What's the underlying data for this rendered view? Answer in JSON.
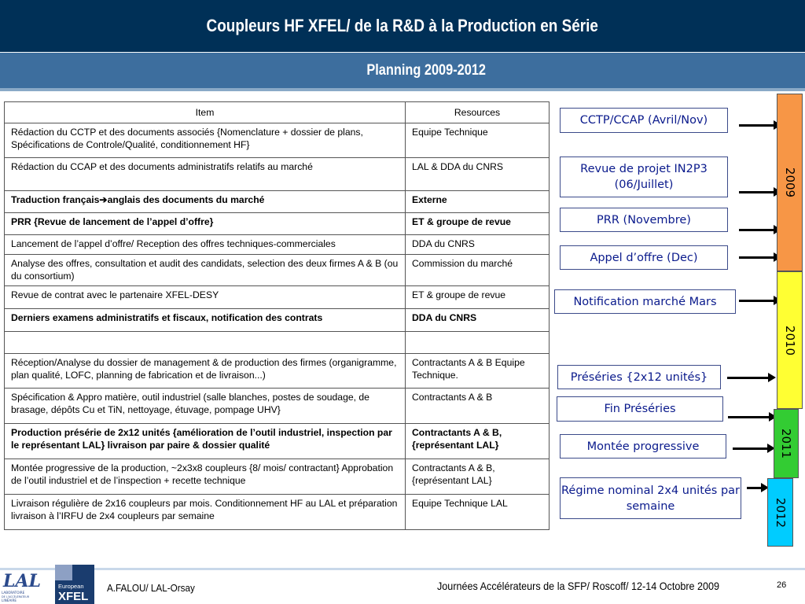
{
  "header": {
    "title": "Coupleurs HF XFEL/ de la R&D à la Production en Série",
    "subtitle": "Planning 2009-2012"
  },
  "table": {
    "headers": [
      "Item",
      "Resources"
    ],
    "rows": [
      {
        "item": "Rédaction du CCTP et des documents associés {Nomenclature + dossier de plans, Spécifications de Controle/Qualité, conditionnement HF}",
        "resources": "Equipe Technique",
        "bold": false
      },
      {
        "item": "Rédaction du CCAP et des documents administratifs relatifs au marché",
        "resources": "LAL & DDA du CNRS",
        "bold": false
      },
      {
        "item": "Traduction français➔anglais des documents du marché",
        "resources": "Externe",
        "bold": true
      },
      {
        "item": "PRR {Revue de lancement de l’appel d’offre}",
        "resources": "ET & groupe de revue",
        "bold": true
      },
      {
        "item": "Lancement de l’appel d’offre/ Reception des offres techniques-commerciales",
        "resources": "DDA du CNRS",
        "bold": false
      },
      {
        "item": "Analyse des offres, consultation et audit des candidats, selection des deux firmes A & B (ou du consortium)",
        "resources": "Commission du marché",
        "bold": false
      },
      {
        "item": "Revue de contrat avec le partenaire XFEL-DESY",
        "resources": "ET & groupe de revue",
        "bold": false
      },
      {
        "item": "Derniers examens administratifs et fiscaux, notification des contrats",
        "resources": "DDA du CNRS",
        "bold": true
      },
      {
        "item": "",
        "resources": "",
        "bold": false
      },
      {
        "item": "Réception/Analyse du dossier de management & de production des firmes (organigramme, plan qualité, LOFC, planning de fabrication et de livraison...)",
        "resources": "Contractants A & B Equipe Technique.",
        "bold": false
      },
      {
        "item": "Spécification & Appro matière, outil industriel (salle blanches, postes de soudage, de brasage, dépôts Cu et TiN, nettoyage, étuvage, pompage UHV}",
        "resources": "Contractants A & B",
        "bold": false
      },
      {
        "item": "Production présérie de 2x12 unités {amélioration de l’outil industriel, inspection par le représentant LAL} livraison par paire & dossier qualité",
        "resources": "Contractants A & B, {représentant LAL}",
        "bold": true
      },
      {
        "item": "Montée progressive de la production, ~2x3x8 coupleurs {8/ mois/ contractant} Approbation de l’outil industriel et de l’inspection + recette technique",
        "resources": "Contractants A & B, {représentant LAL}",
        "bold": false
      },
      {
        "item": "Livraison régulière de 2x16 coupleurs par mois. Conditionnement HF au LAL et préparation livraison à l’IRFU de 2x4 coupleurs par semaine",
        "resources": "Equipe Technique LAL",
        "bold": false
      }
    ]
  },
  "milestones": [
    {
      "label": "CCTP/CCAP  (Avril/Nov)"
    },
    {
      "label": "Revue de projet IN2P3 (06/Juillet)"
    },
    {
      "label": "PRR (Novembre)"
    },
    {
      "label": "Appel d’offre (Dec)"
    },
    {
      "label": "Notification marché Mars"
    },
    {
      "label": "Préséries {2x12 unités}"
    },
    {
      "label": "Fin Préséries"
    },
    {
      "label": "Montée progressive"
    },
    {
      "label": "Régime nominal 2x4 unités par semaine"
    }
  ],
  "years": [
    {
      "label": "2009",
      "color": "#f79646"
    },
    {
      "label": "2010",
      "color": "#ffff33"
    },
    {
      "label": "2011",
      "color": "#33cc33"
    },
    {
      "label": "2012",
      "color": "#00ccff"
    }
  ],
  "footer": {
    "author": "A.FALOU/ LAL-Orsay",
    "event": "Journées Accélérateurs de la SFP/  Roscoff/ 12-14 Octobre 2009",
    "page": "26"
  },
  "logos": {
    "lal": "LABORATOIRE DE L'ACCÉLÉRATEUR LINÉAIRE",
    "xfel_top": "European",
    "xfel_bottom": "XFEL"
  }
}
